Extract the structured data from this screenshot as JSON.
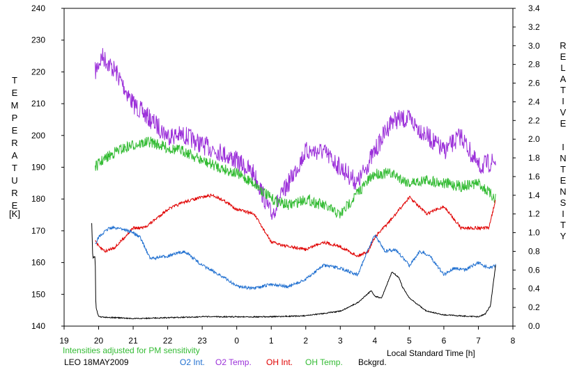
{
  "chart_data": {
    "type": "line",
    "title": "",
    "xlabel": "Local Standard Time [h]",
    "x_tick_labels": [
      "19",
      "20",
      "21",
      "22",
      "23",
      "0",
      "1",
      "2",
      "3",
      "4",
      "5",
      "6",
      "7",
      "8"
    ],
    "xlim_hours": [
      19,
      32
    ],
    "y_left": {
      "label_letters": [
        "T",
        "E",
        "M",
        "P",
        "E",
        "R",
        "A",
        "T",
        "U",
        "R",
        "E"
      ],
      "unit": "[K]",
      "ylim": [
        140,
        240
      ],
      "ticks": [
        "140",
        "150",
        "160",
        "170",
        "180",
        "190",
        "200",
        "210",
        "220",
        "230",
        "240"
      ]
    },
    "y_right": {
      "label_letters_1": [
        "R",
        "E",
        "L",
        "A",
        "T",
        "I",
        "V",
        "E"
      ],
      "label_letters_2": [
        "I",
        "N",
        "T",
        "E",
        "N",
        "S",
        "I",
        "T",
        "Y"
      ],
      "ylim": [
        0.0,
        3.4
      ],
      "ticks": [
        "0.0",
        "0.2",
        "0.4",
        "0.6",
        "0.8",
        "1.0",
        "1.2",
        "1.4",
        "1.6",
        "1.8",
        "2.0",
        "2.2",
        "2.4",
        "2.6",
        "2.8",
        "3.0",
        "3.2",
        "3.4"
      ]
    },
    "note": "Intensities adjusted for PM sensitivity",
    "station": "LEO 18MAY2009",
    "legend": [
      {
        "name": "O2 Int.",
        "color": "#1f6fd0"
      },
      {
        "name": "O2 Temp.",
        "color": "#9b30d9"
      },
      {
        "name": "OH Int.",
        "color": "#e00000"
      },
      {
        "name": "OH Temp.",
        "color": "#33bb33"
      },
      {
        "name": "Bckgrd.",
        "color": "#000000"
      }
    ],
    "series": [
      {
        "name": "O2 Temp.",
        "axis": "left",
        "color": "#9b30d9",
        "x": [
          19.9,
          20.1,
          20.5,
          21.0,
          21.5,
          22.0,
          22.5,
          23.0,
          23.5,
          24.0,
          24.5,
          25.0,
          25.5,
          26.0,
          26.5,
          27.0,
          27.5,
          28.0,
          28.5,
          29.0,
          29.5,
          30.0,
          30.5,
          31.0,
          31.5
        ],
        "y": [
          220,
          225,
          220,
          210,
          205,
          200,
          200,
          197,
          195,
          192,
          188,
          175,
          185,
          195,
          195,
          190,
          185,
          195,
          205,
          205,
          200,
          195,
          200,
          190,
          192
        ]
      },
      {
        "name": "OH Temp.",
        "axis": "left",
        "color": "#33bb33",
        "x": [
          19.9,
          20.1,
          20.5,
          21.0,
          21.5,
          22.0,
          22.5,
          23.0,
          23.5,
          24.0,
          24.5,
          25.0,
          25.5,
          26.0,
          26.5,
          27.0,
          27.5,
          28.0,
          28.5,
          29.0,
          29.5,
          30.0,
          30.5,
          31.0,
          31.5
        ],
        "y": [
          190,
          192,
          195,
          197,
          198,
          196,
          195,
          192,
          190,
          188,
          185,
          180,
          178,
          180,
          178,
          175,
          182,
          188,
          188,
          185,
          186,
          185,
          184,
          185,
          180
        ]
      },
      {
        "name": "OH Int.",
        "axis": "right",
        "color": "#e00000",
        "x": [
          19.9,
          20.0,
          20.2,
          20.5,
          21.0,
          21.3,
          21.5,
          22.0,
          22.5,
          23.0,
          23.3,
          23.6,
          24.0,
          24.5,
          25.0,
          25.5,
          26.0,
          26.5,
          27.0,
          27.5,
          27.8,
          28.0,
          28.5,
          29.0,
          29.5,
          30.0,
          30.5,
          31.0,
          31.3,
          31.5
        ],
        "y": [
          0.92,
          0.85,
          0.8,
          0.85,
          1.05,
          1.05,
          1.1,
          1.25,
          1.33,
          1.38,
          1.4,
          1.35,
          1.25,
          1.2,
          0.9,
          0.85,
          0.82,
          0.9,
          0.85,
          0.75,
          0.8,
          0.95,
          1.15,
          1.38,
          1.2,
          1.28,
          1.05,
          1.05,
          1.05,
          1.35
        ]
      },
      {
        "name": "O2 Int.",
        "axis": "right",
        "color": "#1f6fd0",
        "x": [
          19.9,
          20.0,
          20.3,
          20.6,
          21.0,
          21.2,
          21.5,
          22.0,
          22.5,
          23.0,
          23.5,
          24.0,
          24.5,
          25.0,
          25.5,
          26.0,
          26.5,
          27.0,
          27.5,
          28.0,
          28.3,
          28.6,
          29.0,
          29.3,
          29.6,
          30.0,
          30.3,
          30.6,
          31.0,
          31.3,
          31.5
        ],
        "y": [
          0.88,
          0.95,
          1.05,
          1.05,
          1.0,
          0.95,
          0.72,
          0.75,
          0.8,
          0.65,
          0.55,
          0.43,
          0.4,
          0.45,
          0.42,
          0.5,
          0.65,
          0.62,
          0.55,
          0.98,
          0.8,
          0.82,
          0.65,
          0.8,
          0.75,
          0.55,
          0.62,
          0.6,
          0.68,
          0.62,
          0.65
        ]
      },
      {
        "name": "Bckgrd.",
        "axis": "right",
        "color": "#000000",
        "x": [
          19.8,
          19.83,
          19.9,
          19.92,
          20.0,
          20.5,
          21.0,
          22.0,
          23.0,
          24.0,
          25.0,
          26.0,
          27.0,
          27.5,
          27.9,
          28.0,
          28.2,
          28.3,
          28.5,
          28.7,
          28.8,
          29.0,
          29.5,
          30.0,
          31.0,
          31.2,
          31.35,
          31.5
        ],
        "y": [
          1.1,
          0.73,
          0.75,
          0.2,
          0.1,
          0.09,
          0.08,
          0.09,
          0.1,
          0.1,
          0.1,
          0.11,
          0.16,
          0.25,
          0.38,
          0.32,
          0.3,
          0.4,
          0.58,
          0.52,
          0.42,
          0.3,
          0.16,
          0.12,
          0.1,
          0.13,
          0.22,
          0.65
        ]
      }
    ]
  }
}
